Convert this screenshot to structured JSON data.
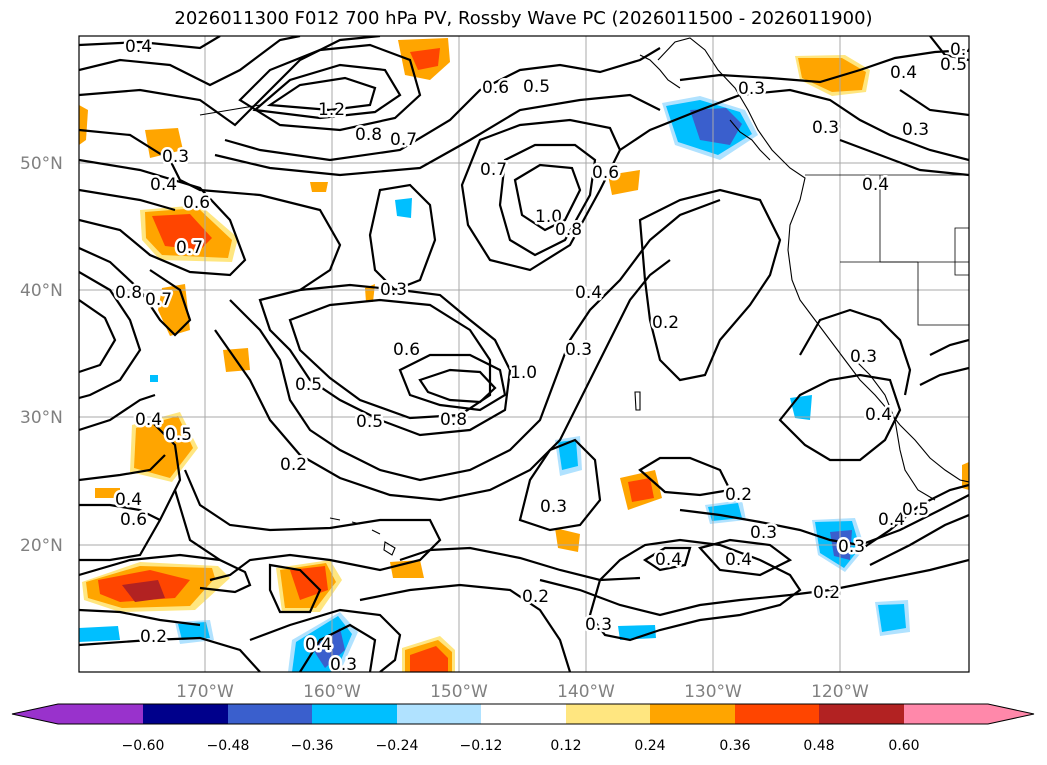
{
  "title": "2026011300 F012 700 hPa PV, Rossby Wave PC (2026011500 - 2026011900)",
  "lat_labels": [
    "50°N",
    "40°N",
    "30°N",
    "20°N"
  ],
  "lon_labels": [
    "170°W",
    "160°W",
    "150°W",
    "140°W",
    "130°W",
    "120°W"
  ],
  "colorbar": {
    "ticks": [
      "−0.60",
      "−0.48",
      "−0.36",
      "−0.24",
      "−0.12",
      "0.12",
      "0.24",
      "0.36",
      "0.48",
      "0.60"
    ],
    "colors": [
      "#9932cc",
      "#00008b",
      "#3a5fcd",
      "#00bfff",
      "#b0e2ff",
      "#ffffff",
      "#ffe680",
      "#ffa500",
      "#ff4500",
      "#b22222",
      "#ff88aa"
    ]
  },
  "contour_labels": [
    "0.4",
    "1.2",
    "0.8",
    "0.7",
    "0.6",
    "0.5",
    "0.3",
    "0.4",
    "0.3",
    "0.4",
    "0.5",
    "0.3",
    "0.4",
    "0.6",
    "0.7",
    "0.8",
    "0.7",
    "0.4",
    "0.3",
    "0.7",
    "1.0",
    "0.8",
    "0.6",
    "0.4",
    "0.3",
    "0.2",
    "0.6",
    "0.5",
    "0.5",
    "0.8",
    "1.0",
    "0.3",
    "0.4",
    "0.5",
    "0.4",
    "0.6",
    "0.2",
    "0.3",
    "0.2",
    "0.3",
    "0.4",
    "0.4",
    "0.3",
    "0.2",
    "0.2",
    "0.3",
    "0.3",
    "0.4",
    "0.4",
    "0.5",
    "0.4",
    "0.3",
    "0.2"
  ]
}
